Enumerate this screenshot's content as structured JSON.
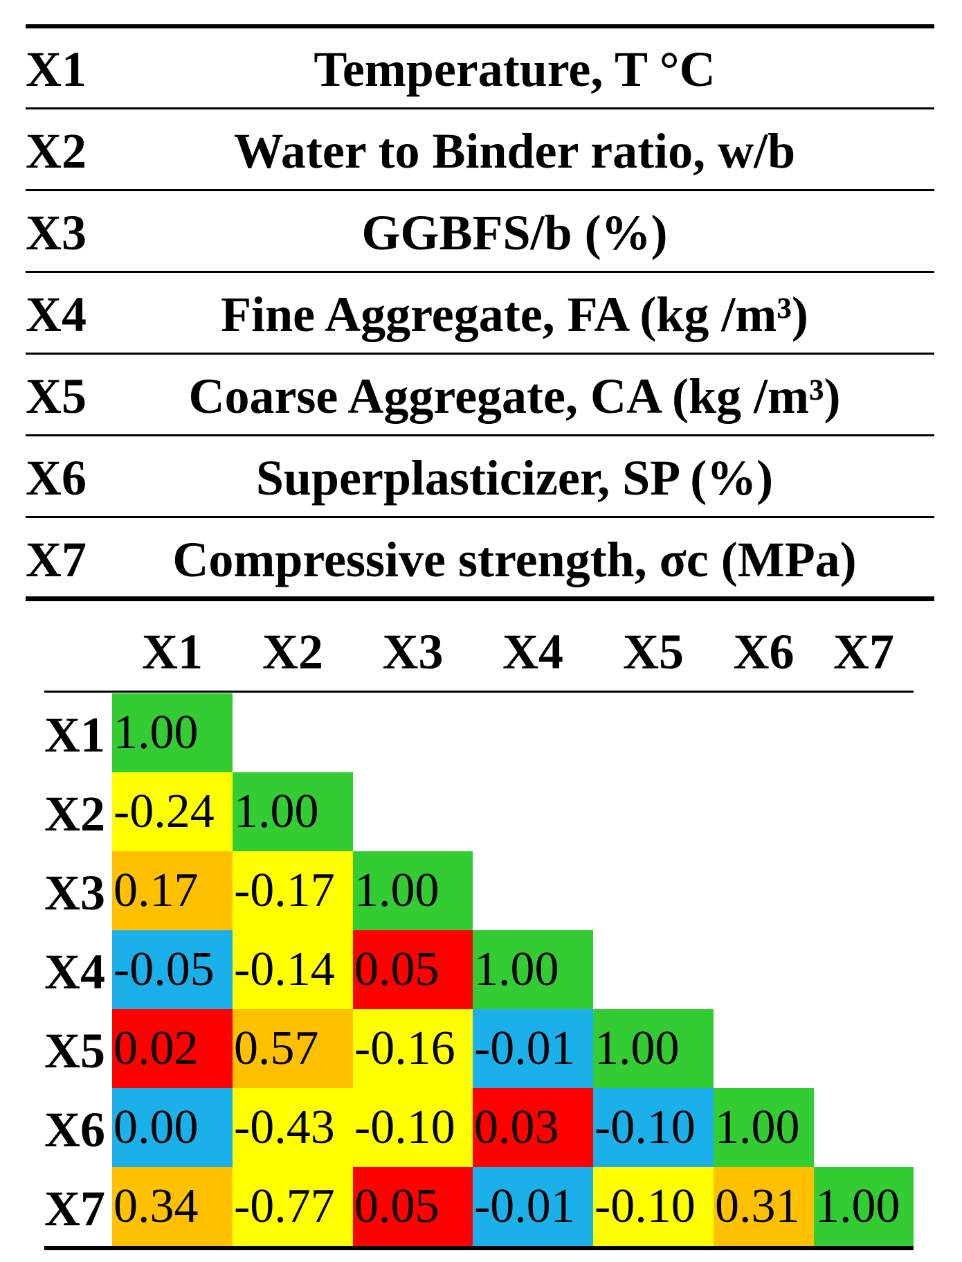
{
  "legend": {
    "rows": [
      {
        "id": "X1",
        "text": "Temperature, T °C"
      },
      {
        "id": "X2",
        "text": "Water to Binder ratio, w/b"
      },
      {
        "id": "X3",
        "text": "GGBFS/b (%)"
      },
      {
        "id": "X4",
        "text": "Fine Aggregate, FA (kg /m³)"
      },
      {
        "id": "X5",
        "text": "Coarse Aggregate, CA (kg /m³)"
      },
      {
        "id": "X6",
        "text": "Superplasticizer, SP (%)"
      },
      {
        "id": "X7",
        "text": "Compressive strength, σc (MPa)"
      }
    ]
  },
  "matrix": {
    "columns": [
      "X1",
      "X2",
      "X3",
      "X4",
      "X5",
      "X6",
      "X7"
    ],
    "rows": [
      {
        "label": "X1",
        "cells": [
          {
            "text": "1.00",
            "color": "#33cc33"
          }
        ]
      },
      {
        "label": "X2",
        "cells": [
          {
            "text": "-0.24",
            "color": "#ffff00"
          },
          {
            "text": "1.00",
            "color": "#33cc33"
          }
        ]
      },
      {
        "label": "X3",
        "cells": [
          {
            "text": "0.17",
            "color": "#ffc000"
          },
          {
            "text": "-0.17",
            "color": "#ffff00"
          },
          {
            "text": "1.00",
            "color": "#33cc33"
          }
        ]
      },
      {
        "label": "X4",
        "cells": [
          {
            "text": "-0.05",
            "color": "#1cb0ea"
          },
          {
            "text": "-0.14",
            "color": "#ffff00"
          },
          {
            "text": "0.05",
            "color": "#ff0000"
          },
          {
            "text": "1.00",
            "color": "#33cc33"
          }
        ]
      },
      {
        "label": "X5",
        "cells": [
          {
            "text": "0.02",
            "color": "#ff0000"
          },
          {
            "text": "0.57",
            "color": "#ffc000"
          },
          {
            "text": "-0.16",
            "color": "#ffff00"
          },
          {
            "text": "-0.01",
            "color": "#1cb0ea"
          },
          {
            "text": "1.00",
            "color": "#33cc33"
          }
        ]
      },
      {
        "label": "X6",
        "cells": [
          {
            "text": "0.00",
            "color": "#1cb0ea"
          },
          {
            "text": "-0.43",
            "color": "#ffff00"
          },
          {
            "text": "-0.10",
            "color": "#ffff00"
          },
          {
            "text": "0.03",
            "color": "#ff0000"
          },
          {
            "text": "-0.10",
            "color": "#1cb0ea"
          },
          {
            "text": "1.00",
            "color": "#33cc33"
          }
        ]
      },
      {
        "label": "X7",
        "cells": [
          {
            "text": "0.34",
            "color": "#ffc000"
          },
          {
            "text": "-0.77",
            "color": "#ffff00"
          },
          {
            "text": "0.05",
            "color": "#ff0000"
          },
          {
            "text": "-0.01",
            "color": "#1cb0ea"
          },
          {
            "text": "-0.10",
            "color": "#ffff00"
          },
          {
            "text": "0.31",
            "color": "#ffc000"
          },
          {
            "text": "1.00",
            "color": "#33cc33"
          }
        ]
      }
    ]
  }
}
